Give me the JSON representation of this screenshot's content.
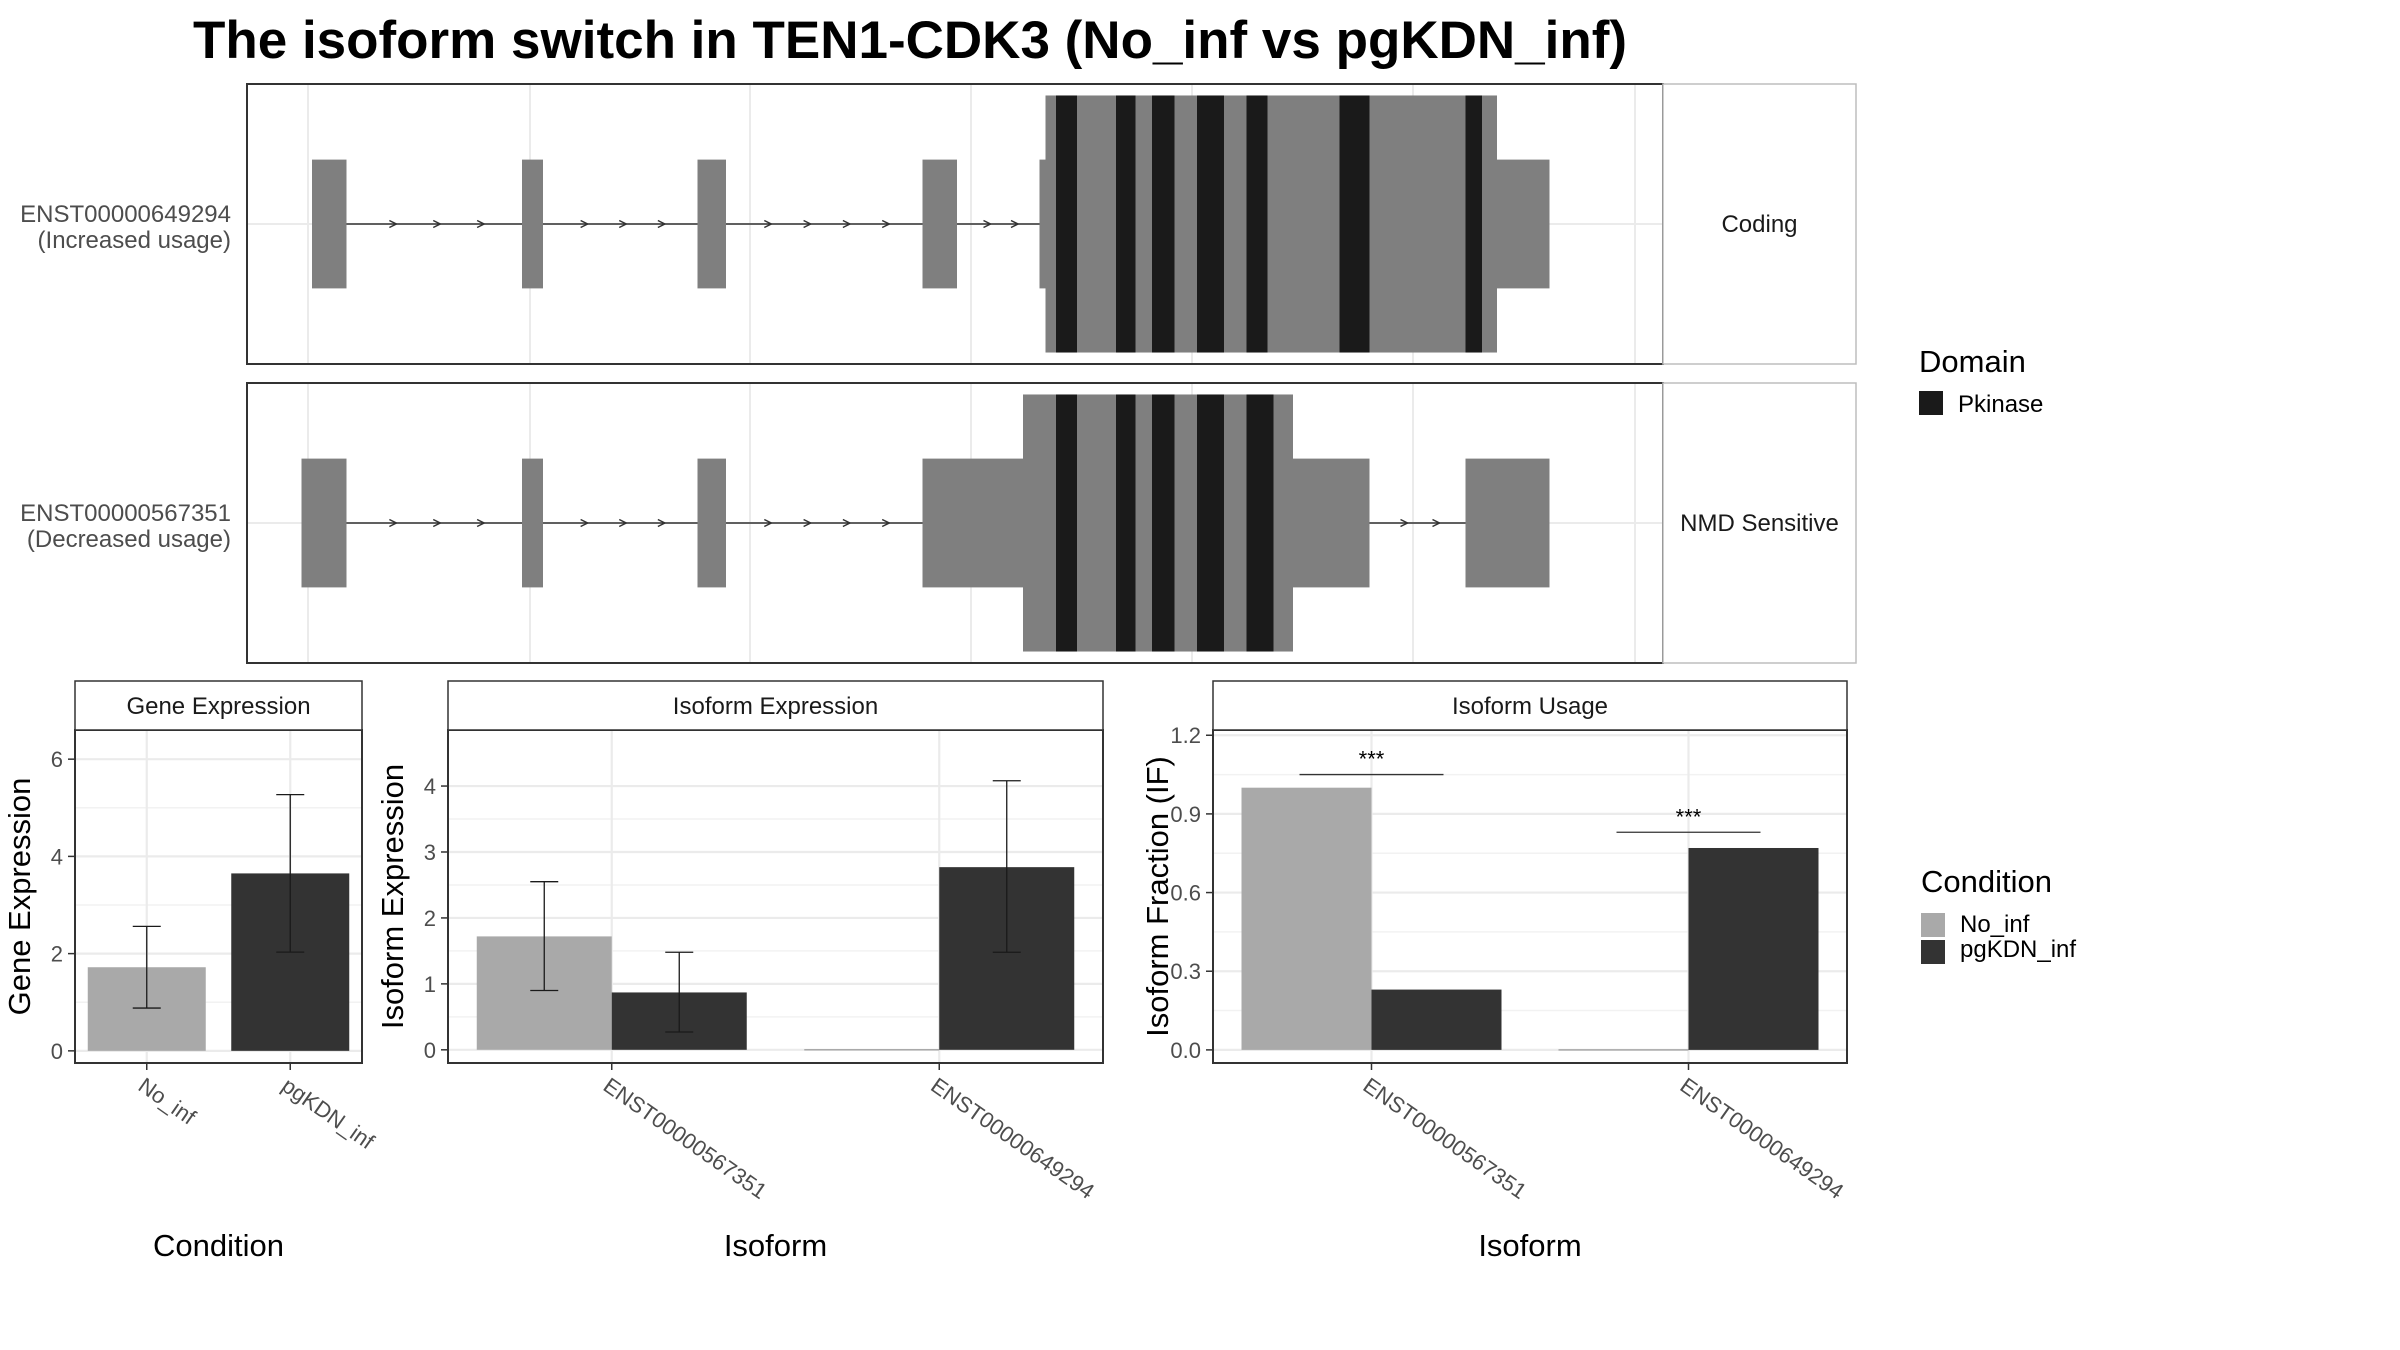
{
  "title": "The isoform switch in TEN1-CDK3 (No_inf vs pgKDN_inf)",
  "colors": {
    "no_inf": "#a9a9a9",
    "pgkdn_inf": "#333333",
    "exon": "#7f7f7f",
    "domain": "#1a1a1a",
    "grid": "#ebebeb",
    "panel_border": "#333333",
    "strip_bg": "#ffffff"
  },
  "structure": {
    "tracks": [
      {
        "transcript": "ENST00000649294",
        "usage_label": "(Increased usage)",
        "category": "Coding",
        "exons": [
          [
            208,
            231,
            "utr"
          ],
          [
            348,
            362,
            "utr"
          ],
          [
            465,
            484,
            "utr"
          ],
          [
            615,
            638,
            "utr"
          ],
          [
            693,
            697,
            "utr"
          ],
          [
            697,
            998,
            "cds"
          ],
          [
            998,
            1033,
            "utr"
          ]
        ],
        "domains": [
          [
            704,
            718
          ],
          [
            744,
            757
          ],
          [
            768,
            783
          ],
          [
            798,
            816
          ],
          [
            831,
            845
          ],
          [
            893,
            913
          ],
          [
            977,
            988
          ]
        ]
      },
      {
        "transcript": "ENST00000567351",
        "usage_label": "(Decreased usage)",
        "category": "NMD Sensitive",
        "exons": [
          [
            201,
            231,
            "utr"
          ],
          [
            348,
            362,
            "utr"
          ],
          [
            465,
            484,
            "utr"
          ],
          [
            615,
            682,
            "utr"
          ],
          [
            682,
            862,
            "cds"
          ],
          [
            862,
            913,
            "utr"
          ],
          [
            977,
            1033,
            "utr"
          ]
        ],
        "domains": [
          [
            704,
            718
          ],
          [
            744,
            757
          ],
          [
            768,
            783
          ],
          [
            798,
            816
          ],
          [
            831,
            849
          ]
        ]
      }
    ],
    "legend": {
      "title": "Domain",
      "items": [
        {
          "label": "Pkinase",
          "color": "#1a1a1a"
        }
      ]
    }
  },
  "chart_data": [
    {
      "type": "bar",
      "strip": "Gene Expression",
      "categories": [
        "No_inf",
        "pgKDN_inf"
      ],
      "values": [
        1.72,
        3.65
      ],
      "error_low": [
        0.88,
        2.03
      ],
      "error_high": [
        2.56,
        5.27
      ],
      "ylabel": "Gene Expression",
      "xlabel": "Condition",
      "ylim": [
        -0.25,
        6.6
      ],
      "yticks": [
        0,
        2,
        4,
        6
      ],
      "grid": true
    },
    {
      "type": "bar",
      "strip": "Isoform Expression",
      "categories": [
        "ENST00000567351",
        "ENST00000649294"
      ],
      "series": [
        {
          "name": "No_inf",
          "values": [
            1.72,
            0.0
          ],
          "error_low": [
            0.9,
            0.0
          ],
          "error_high": [
            2.55,
            0.0
          ]
        },
        {
          "name": "pgKDN_inf",
          "values": [
            0.87,
            2.77
          ],
          "error_low": [
            0.27,
            1.48
          ],
          "error_high": [
            1.48,
            4.08
          ]
        }
      ],
      "ylabel": "Isoform Expression",
      "xlabel": "Isoform",
      "ylim": [
        -0.2,
        4.85
      ],
      "yticks": [
        0,
        1,
        2,
        3,
        4
      ],
      "grid": true
    },
    {
      "type": "bar",
      "strip": "Isoform Usage",
      "categories": [
        "ENST00000567351",
        "ENST00000649294"
      ],
      "series": [
        {
          "name": "No_inf",
          "values": [
            1.0,
            0.0
          ]
        },
        {
          "name": "pgKDN_inf",
          "values": [
            0.23,
            0.77
          ]
        }
      ],
      "significance": [
        {
          "label": "***",
          "y": 1.05
        },
        {
          "label": "***",
          "y": 0.83
        }
      ],
      "ylabel": "Isoform Fraction (IF)",
      "xlabel": "Isoform",
      "ylim": [
        -0.05,
        1.22
      ],
      "yticks": [
        0.0,
        0.3,
        0.6,
        0.9,
        1.2
      ],
      "ytick_labels": [
        "0.0",
        "0.3",
        "0.6",
        "0.9",
        "1.2"
      ],
      "grid": true
    }
  ],
  "condition_legend": {
    "title": "Condition",
    "items": [
      {
        "label": "No_inf",
        "color": "#a9a9a9"
      },
      {
        "label": "pgKDN_inf",
        "color": "#333333"
      }
    ]
  }
}
